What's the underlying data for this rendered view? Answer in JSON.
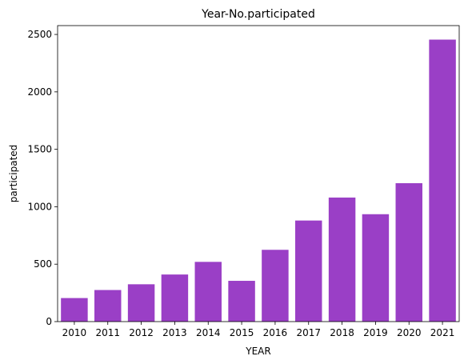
{
  "chart_data": {
    "type": "bar",
    "title": "Year-No.participated",
    "xlabel": "YEAR",
    "ylabel": "participated",
    "categories": [
      "2010",
      "2011",
      "2012",
      "2013",
      "2014",
      "2015",
      "2016",
      "2017",
      "2018",
      "2019",
      "2020",
      "2021"
    ],
    "values": [
      205,
      275,
      325,
      410,
      520,
      355,
      625,
      880,
      1080,
      935,
      1205,
      2455
    ],
    "ylim": [
      0,
      2577
    ],
    "yticks": [
      0,
      500,
      1000,
      1500,
      2000,
      2500
    ],
    "bar_color": "#9a3fc6",
    "grid": false,
    "legend": "none"
  }
}
